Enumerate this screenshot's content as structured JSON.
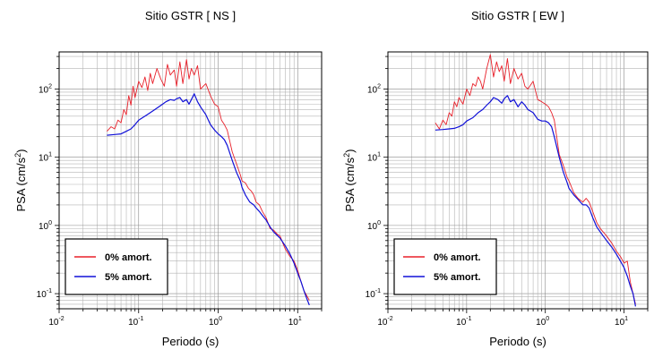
{
  "chart_data": [
    {
      "type": "line",
      "title": "Sitio GSTR [ NS ]",
      "xlabel": "Periodo (s)",
      "ylabel_main": "PSA (cm/s",
      "ylabel_sup": "2",
      "ylabel_end": ")",
      "xscale": "log",
      "yscale": "log",
      "xlim": [
        0.01,
        20
      ],
      "ylim": [
        0.06,
        350
      ],
      "grid": true,
      "legend_position": "bottom-left",
      "xticks": [
        {
          "value": 0.01,
          "base": "10",
          "exp": "-2"
        },
        {
          "value": 0.1,
          "base": "10",
          "exp": "-1"
        },
        {
          "value": 1,
          "base": "10",
          "exp": "0"
        },
        {
          "value": 10,
          "base": "10",
          "exp": "1"
        }
      ],
      "yticks": [
        {
          "value": 0.1,
          "base": "10",
          "exp": "-1"
        },
        {
          "value": 1,
          "base": "10",
          "exp": "0"
        },
        {
          "value": 10,
          "base": "10",
          "exp": "1"
        },
        {
          "value": 100,
          "base": "10",
          "exp": "2"
        }
      ],
      "series": [
        {
          "name": "0% amort.",
          "color": "#e8202a",
          "x": [
            0.04,
            0.045,
            0.05,
            0.055,
            0.06,
            0.065,
            0.07,
            0.075,
            0.08,
            0.085,
            0.09,
            0.1,
            0.11,
            0.12,
            0.13,
            0.14,
            0.15,
            0.17,
            0.19,
            0.21,
            0.23,
            0.25,
            0.28,
            0.3,
            0.33,
            0.36,
            0.4,
            0.43,
            0.46,
            0.5,
            0.55,
            0.6,
            0.65,
            0.7,
            0.8,
            0.9,
            1.0,
            1.1,
            1.2,
            1.3,
            1.5,
            1.7,
            1.9,
            2.0,
            2.2,
            2.4,
            2.6,
            2.8,
            3.0,
            3.3,
            3.6,
            4.0,
            4.5,
            5.0,
            5.5,
            6.0,
            6.5,
            7.0,
            8.0,
            9.0,
            10,
            11,
            12,
            14
          ],
          "y": [
            24,
            28,
            26,
            35,
            32,
            50,
            42,
            80,
            58,
            110,
            75,
            130,
            105,
            150,
            95,
            170,
            120,
            200,
            140,
            110,
            230,
            160,
            190,
            110,
            250,
            120,
            270,
            140,
            200,
            160,
            220,
            100,
            110,
            120,
            80,
            60,
            55,
            35,
            30,
            25,
            12,
            8,
            5.5,
            4.5,
            4.2,
            3.5,
            3.2,
            2.8,
            2.2,
            2.0,
            1.6,
            1.3,
            0.9,
            0.85,
            0.75,
            0.7,
            0.55,
            0.45,
            0.35,
            0.3,
            0.22,
            0.15,
            0.11,
            0.08
          ]
        },
        {
          "name": "5% amort.",
          "color": "#1010d8",
          "x": [
            0.04,
            0.05,
            0.06,
            0.07,
            0.08,
            0.09,
            0.1,
            0.12,
            0.14,
            0.16,
            0.18,
            0.2,
            0.22,
            0.25,
            0.28,
            0.3,
            0.33,
            0.36,
            0.4,
            0.43,
            0.46,
            0.5,
            0.55,
            0.6,
            0.7,
            0.8,
            0.9,
            1.0,
            1.1,
            1.2,
            1.3,
            1.5,
            1.7,
            1.9,
            2.0,
            2.2,
            2.5,
            2.8,
            3.0,
            3.3,
            3.6,
            4.0,
            4.5,
            5.0,
            5.5,
            6.0,
            7.0,
            8.0,
            9.0,
            10,
            11,
            12,
            13,
            14
          ],
          "y": [
            21,
            21.5,
            22,
            24,
            26,
            30,
            35,
            40,
            45,
            50,
            55,
            60,
            65,
            70,
            68,
            72,
            75,
            65,
            70,
            60,
            70,
            85,
            65,
            55,
            42,
            30,
            25,
            22,
            20,
            18,
            15,
            9,
            6,
            4.5,
            3.6,
            2.8,
            2.2,
            2.0,
            1.8,
            1.6,
            1.4,
            1.2,
            0.95,
            0.8,
            0.72,
            0.65,
            0.5,
            0.38,
            0.28,
            0.2,
            0.15,
            0.11,
            0.085,
            0.068
          ]
        }
      ]
    },
    {
      "type": "line",
      "title": "Sitio GSTR [ EW ]",
      "xlabel": "Periodo (s)",
      "ylabel_main": "PSA (cm/s",
      "ylabel_sup": "2",
      "ylabel_end": ")",
      "xscale": "log",
      "yscale": "log",
      "xlim": [
        0.01,
        20
      ],
      "ylim": [
        0.06,
        350
      ],
      "grid": true,
      "legend_position": "bottom-left",
      "xticks": [
        {
          "value": 0.01,
          "base": "10",
          "exp": "-2"
        },
        {
          "value": 0.1,
          "base": "10",
          "exp": "-1"
        },
        {
          "value": 1,
          "base": "10",
          "exp": "0"
        },
        {
          "value": 10,
          "base": "10",
          "exp": "1"
        }
      ],
      "yticks": [
        {
          "value": 0.1,
          "base": "10",
          "exp": "-1"
        },
        {
          "value": 1,
          "base": "10",
          "exp": "0"
        },
        {
          "value": 10,
          "base": "10",
          "exp": "1"
        },
        {
          "value": 100,
          "base": "10",
          "exp": "2"
        }
      ],
      "series": [
        {
          "name": "0% amort.",
          "color": "#e8202a",
          "x": [
            0.04,
            0.045,
            0.05,
            0.055,
            0.06,
            0.065,
            0.07,
            0.075,
            0.08,
            0.09,
            0.1,
            0.11,
            0.12,
            0.13,
            0.14,
            0.15,
            0.16,
            0.18,
            0.2,
            0.22,
            0.24,
            0.26,
            0.28,
            0.3,
            0.33,
            0.36,
            0.4,
            0.45,
            0.5,
            0.55,
            0.6,
            0.7,
            0.8,
            0.9,
            1.0,
            1.1,
            1.2,
            1.3,
            1.5,
            1.7,
            1.9,
            2.0,
            2.3,
            2.6,
            3.0,
            3.3,
            3.6,
            4.0,
            4.5,
            5.0,
            6.0,
            7.0,
            8.0,
            9.0,
            10,
            11,
            12,
            13,
            14
          ],
          "y": [
            32,
            26,
            35,
            30,
            45,
            40,
            65,
            55,
            75,
            60,
            100,
            80,
            120,
            110,
            150,
            130,
            100,
            200,
            320,
            150,
            250,
            180,
            220,
            130,
            280,
            120,
            200,
            140,
            170,
            110,
            100,
            130,
            70,
            65,
            60,
            55,
            45,
            35,
            11,
            7.5,
            5.0,
            4.5,
            3.0,
            2.5,
            2.2,
            2.5,
            2.2,
            1.6,
            1.1,
            0.9,
            0.7,
            0.55,
            0.42,
            0.35,
            0.28,
            0.3,
            0.15,
            0.1,
            0.07
          ]
        },
        {
          "name": "5% amort.",
          "color": "#1010d8",
          "x": [
            0.04,
            0.05,
            0.06,
            0.07,
            0.08,
            0.09,
            0.1,
            0.12,
            0.14,
            0.16,
            0.18,
            0.2,
            0.22,
            0.25,
            0.28,
            0.3,
            0.33,
            0.36,
            0.4,
            0.45,
            0.5,
            0.55,
            0.6,
            0.7,
            0.8,
            0.9,
            1.0,
            1.1,
            1.2,
            1.3,
            1.5,
            1.7,
            1.9,
            2.0,
            2.3,
            2.6,
            3.0,
            3.3,
            3.6,
            4.0,
            4.5,
            5.0,
            6.0,
            7.0,
            8.0,
            9.0,
            10,
            11,
            12,
            13,
            14
          ],
          "y": [
            25,
            25.5,
            26,
            26.5,
            28,
            30,
            34,
            38,
            45,
            50,
            58,
            65,
            75,
            70,
            62,
            72,
            80,
            65,
            70,
            55,
            65,
            58,
            50,
            45,
            36,
            34,
            34,
            32,
            28,
            20,
            10,
            6,
            4.2,
            3.5,
            2.8,
            2.4,
            2.0,
            2.0,
            1.8,
            1.3,
            0.95,
            0.8,
            0.6,
            0.48,
            0.38,
            0.3,
            0.24,
            0.18,
            0.13,
            0.1,
            0.065
          ]
        }
      ]
    }
  ]
}
